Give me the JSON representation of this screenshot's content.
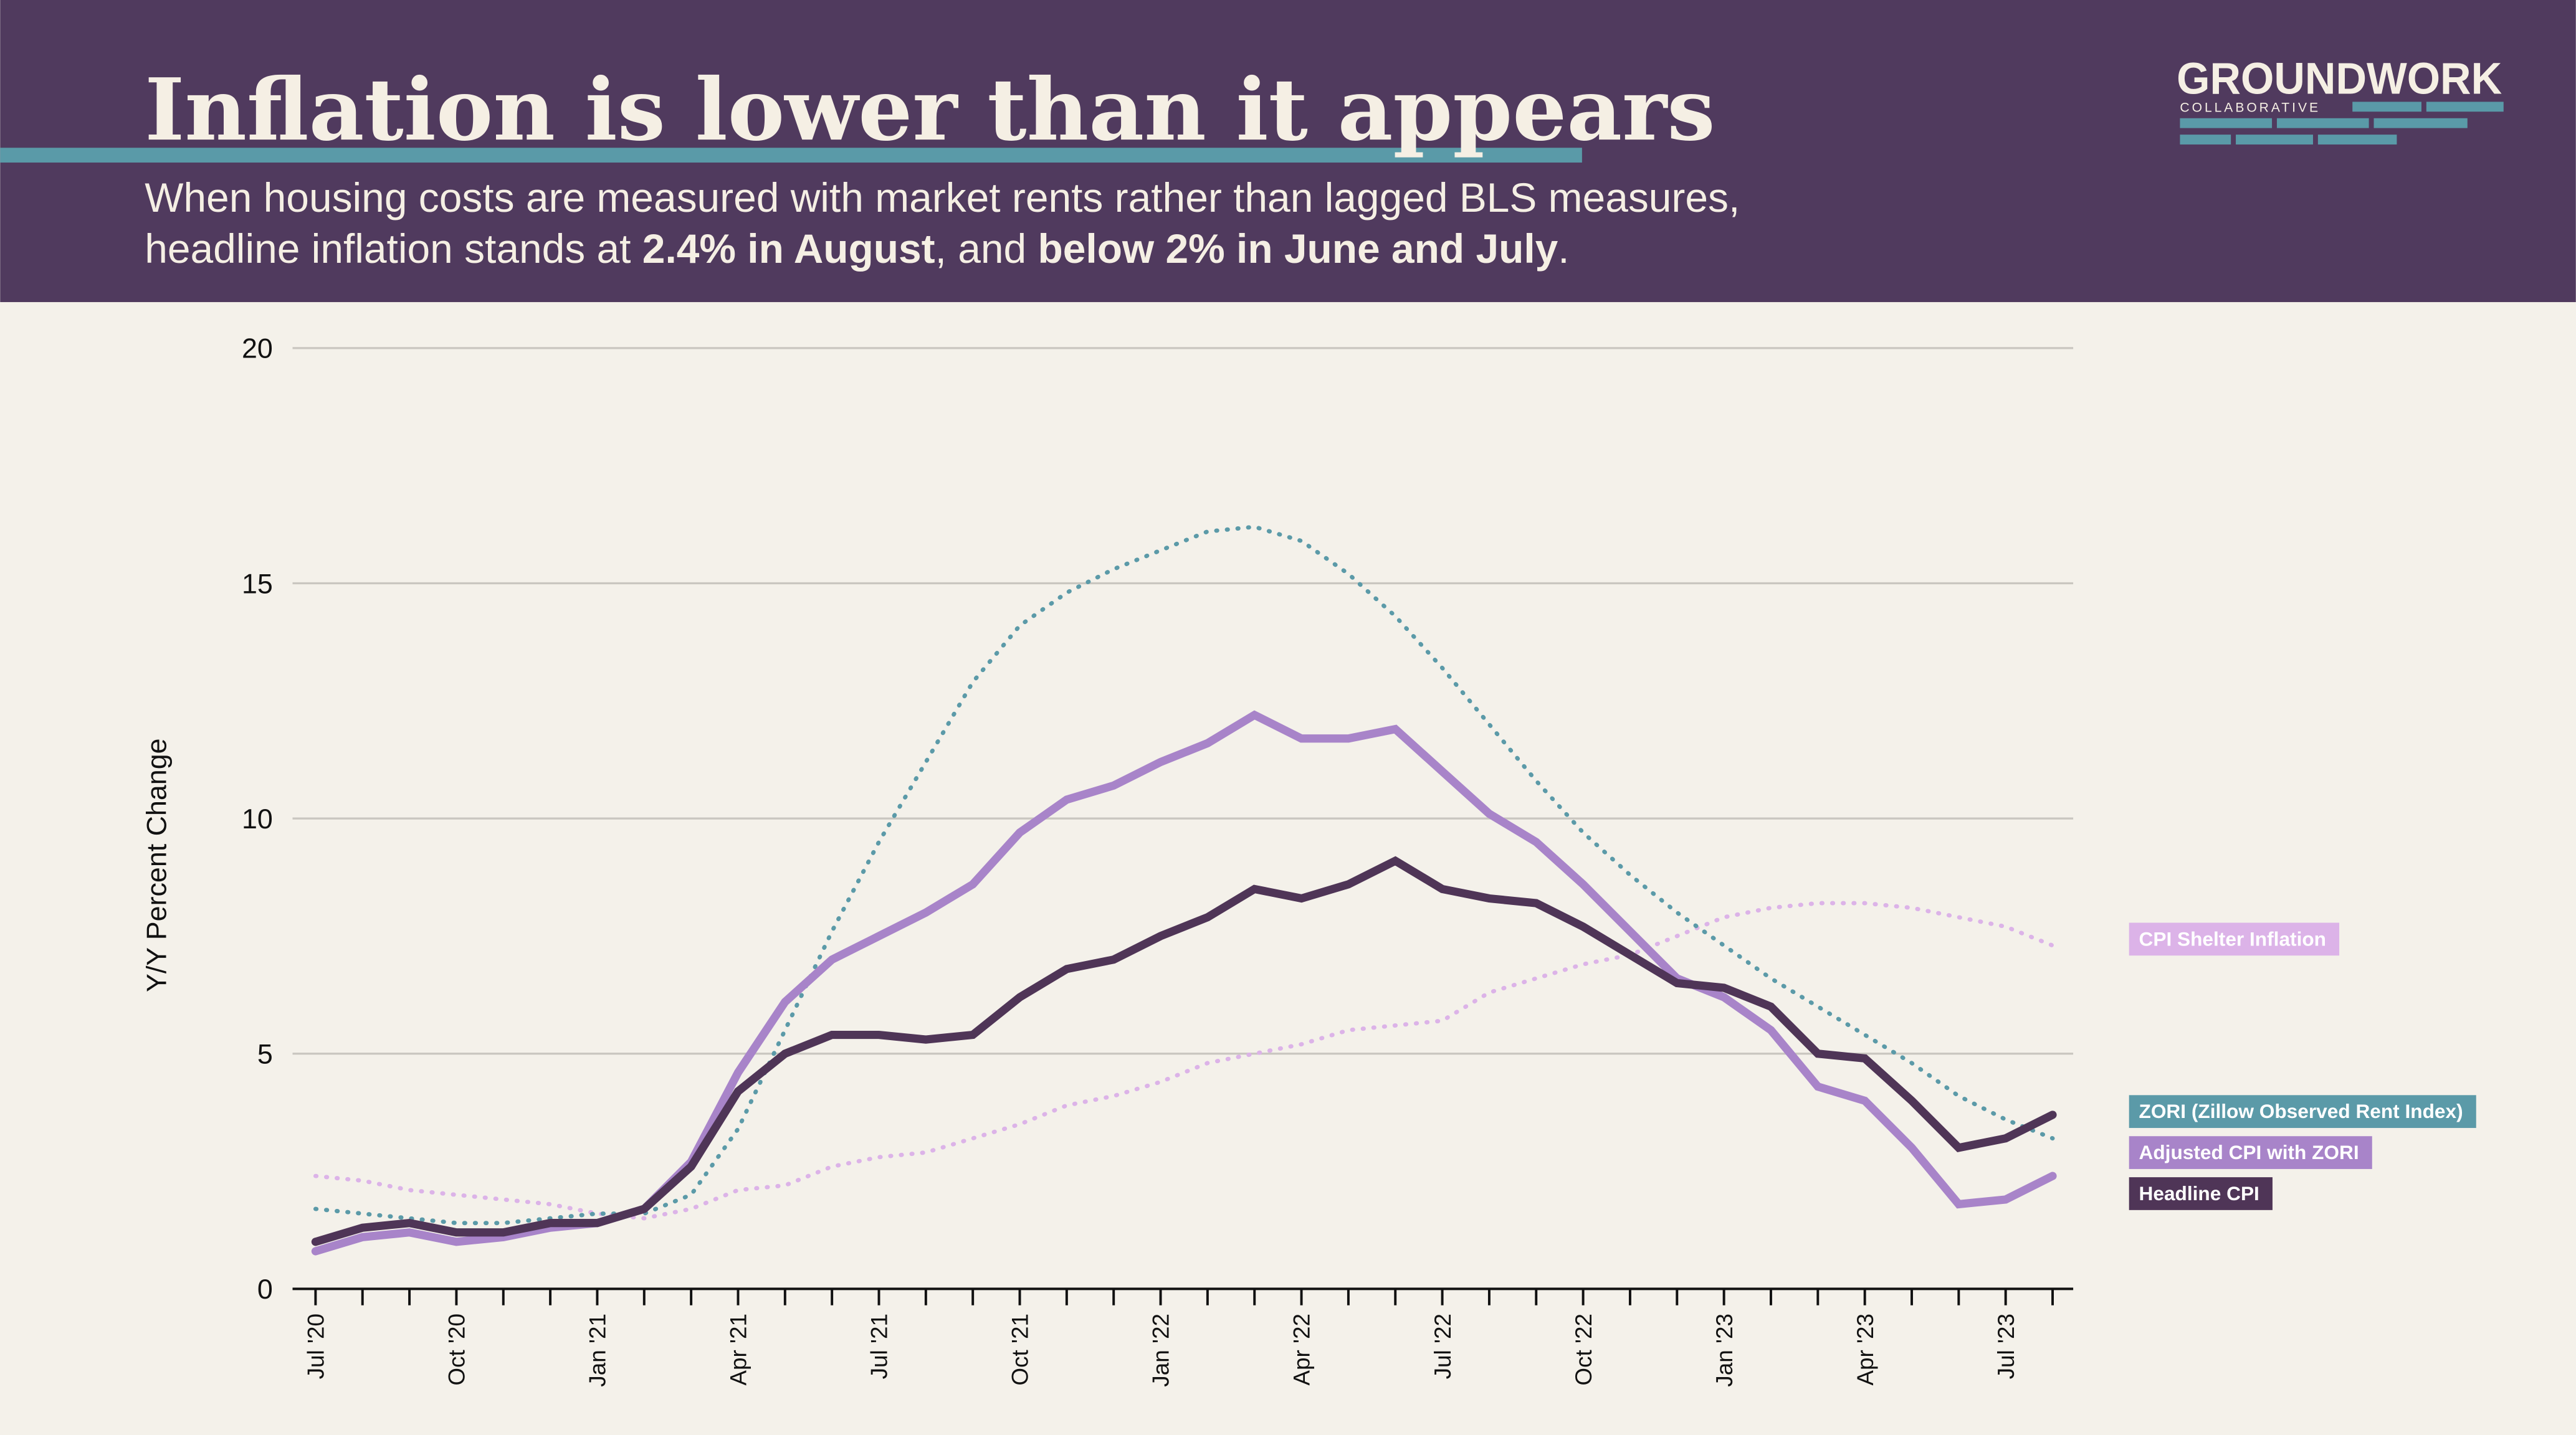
{
  "chart_data": {
    "type": "line",
    "title": "Inflation is lower than it appears",
    "subtitle": [
      "When housing costs are measured with market rents rather than lagged BLS measures,",
      "headline inflation stands at ",
      "2.4% in August",
      ", and ",
      "below 2% in June and July",
      "."
    ],
    "logo": {
      "name": "GROUNDWORK",
      "tagline": "COLLABORATIVE"
    },
    "ylabel": "Y/Y Percent Change",
    "categories": [
      "Jul '20",
      null,
      null,
      "Oct '20",
      null,
      null,
      "Jan '21",
      null,
      null,
      "Apr '21",
      null,
      null,
      "Jul '21",
      null,
      null,
      "Oct '21",
      null,
      null,
      "Jan '22",
      null,
      null,
      "Apr '22",
      null,
      null,
      "Jul '22",
      null,
      null,
      "Oct '22",
      null,
      null,
      "Jan '23",
      null,
      null,
      "Apr '23",
      null,
      null,
      "Jul '23",
      null
    ],
    "ylim": [
      0,
      20
    ],
    "yticks": [
      0,
      5,
      10,
      15,
      20
    ],
    "grid": true,
    "series": [
      {
        "name": "CPI Shelter Inflation",
        "color": "#dcb3e8",
        "style": "dotted",
        "values": [
          2.4,
          2.3,
          2.1,
          2.0,
          1.9,
          1.8,
          1.6,
          1.5,
          1.7,
          2.1,
          2.2,
          2.6,
          2.8,
          2.9,
          3.2,
          3.5,
          3.9,
          4.1,
          4.4,
          4.8,
          5.0,
          5.2,
          5.5,
          5.6,
          5.7,
          6.3,
          6.6,
          6.9,
          7.1,
          7.5,
          7.9,
          8.1,
          8.2,
          8.2,
          8.1,
          7.9,
          7.7,
          7.3
        ]
      },
      {
        "name": "ZORI (Zillow Observed Rent Index)",
        "color": "#5b9aa8",
        "style": "dotted",
        "values": [
          1.7,
          1.6,
          1.5,
          1.4,
          1.4,
          1.5,
          1.6,
          1.6,
          2.0,
          3.4,
          5.5,
          7.6,
          9.5,
          11.2,
          12.9,
          14.1,
          14.8,
          15.3,
          15.7,
          16.1,
          16.2,
          15.9,
          15.2,
          14.3,
          13.2,
          12.0,
          10.8,
          9.7,
          8.8,
          8.0,
          7.3,
          6.6,
          6.0,
          5.4,
          4.8,
          4.1,
          3.6,
          3.2
        ]
      },
      {
        "name": "Adjusted CPI with ZORI",
        "color": "#a884c9",
        "style": "solid",
        "values": [
          0.8,
          1.1,
          1.2,
          1.0,
          1.1,
          1.3,
          1.4,
          1.7,
          2.7,
          4.6,
          6.1,
          7.0,
          7.5,
          8.0,
          8.6,
          9.7,
          10.4,
          10.7,
          11.2,
          11.6,
          12.2,
          11.7,
          11.7,
          11.9,
          11.0,
          10.1,
          9.5,
          8.6,
          7.6,
          6.6,
          6.2,
          5.5,
          4.3,
          4.0,
          3.0,
          1.8,
          1.9,
          2.4
        ]
      },
      {
        "name": "Headline CPI",
        "color": "#4f3557",
        "style": "solid",
        "values": [
          1.0,
          1.3,
          1.4,
          1.2,
          1.2,
          1.4,
          1.4,
          1.7,
          2.6,
          4.2,
          5.0,
          5.4,
          5.4,
          5.3,
          5.4,
          6.2,
          6.8,
          7.0,
          7.5,
          7.9,
          8.5,
          8.3,
          8.6,
          9.1,
          8.5,
          8.3,
          8.2,
          7.7,
          7.1,
          6.5,
          6.4,
          6.0,
          5.0,
          4.9,
          4.0,
          3.0,
          3.2,
          3.7
        ]
      }
    ]
  }
}
